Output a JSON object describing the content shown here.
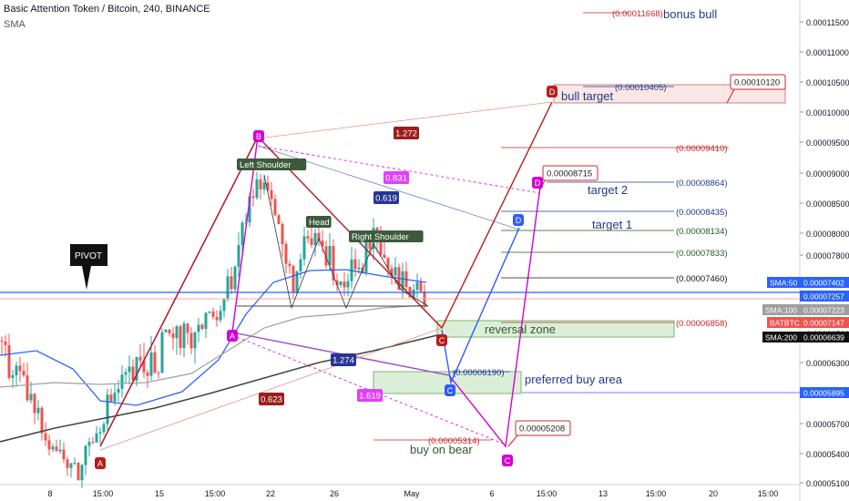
{
  "header": {
    "title": "Basic Attention Token / Bitcoin, 240, BINANCE",
    "indicator": "SMA"
  },
  "colors": {
    "up": "#26a69a",
    "down": "#ef5350",
    "sma50": "#2962ff",
    "sma100": "#a0a0a0",
    "sma200": "#454545",
    "pattern": "#d500d5",
    "bull": "#b71c1c",
    "bear": "#1e3a8a"
  },
  "chart_data": {
    "type": "candlestick",
    "symbol": "BATBTC",
    "timeframe": "240",
    "exchange": "BINANCE",
    "y_axis": {
      "ticks": [
        "0.00011500",
        "0.00011000",
        "0.00010500",
        "0.00010000",
        "0.00009500",
        "0.00009000",
        "0.00008500",
        "0.00008000",
        "0.00007800",
        "0.00007000",
        "0.00006500",
        "0.00006300",
        "0.00006000",
        "0.00005700",
        "0.00005400",
        "0.00005100"
      ],
      "tick_values": [
        0.000115,
        0.00011,
        0.000105,
        0.0001,
        9.5e-05,
        9e-05,
        8.5e-05,
        8e-05,
        7.8e-05,
        7e-05,
        6.5e-05,
        6.3e-05,
        6e-05,
        5.7e-05,
        5.4e-05,
        5.1e-05
      ]
    },
    "x_axis": {
      "ticks": [
        "8",
        "15:00",
        "15",
        "15:00",
        "22",
        "26",
        "May",
        "6",
        "15:00",
        "13",
        "15:00",
        "20",
        "15:00"
      ]
    },
    "price_labels": [
      {
        "name": "SMA:50",
        "value": "0.00007402"
      },
      {
        "name": "",
        "value": "0.00007257"
      },
      {
        "name": "SMA:100",
        "value": "0.00007223"
      },
      {
        "name": "BATBTC",
        "value": "0.00007147"
      },
      {
        "name": "SMA:200",
        "value": "0.00006639"
      },
      {
        "name": "",
        "value": "0.00005895"
      }
    ],
    "pattern_points": [
      {
        "label": "A",
        "price": 5.17e-05
      },
      {
        "label": "B",
        "price": 9.42e-05
      },
      {
        "label": "C",
        "price": 6.85e-05
      },
      {
        "label": "D",
        "price": 0.000104
      }
    ],
    "ratios": [
      "1.272",
      "0.831",
      "0.619",
      "1.274",
      "0.623",
      "1.619"
    ],
    "level_labels": [
      {
        "text": "(0.00011668)",
        "value": 0.00011668
      },
      {
        "text": "(0.00010405)",
        "value": 0.00010405
      },
      {
        "text": "(0.00009410)",
        "value": 9.41e-05
      },
      {
        "text": "(0.00008864)",
        "value": 8.864e-05
      },
      {
        "text": "(0.00008435)",
        "value": 8.435e-05
      },
      {
        "text": "(0.00008134)",
        "value": 8.134e-05
      },
      {
        "text": "(0.00007833)",
        "value": 7.833e-05
      },
      {
        "text": "(0.00007460)",
        "value": 7.46e-05
      },
      {
        "text": "(0.00006858)",
        "value": 6.858e-05
      },
      {
        "text": "(0.00006190)",
        "value": 6.19e-05
      },
      {
        "text": "(0.00005314)",
        "value": 5.314e-05
      }
    ],
    "callouts": [
      "0.00010120",
      "0.00008715",
      "0.00005208"
    ],
    "text_annotations": [
      "bonus bull",
      "bull target",
      "target 2",
      "target 1",
      "reversal zone",
      "preferred buy area",
      "buy on bear"
    ],
    "pattern_labels": [
      "Left Shoulder",
      "Head",
      "Right Shoulder"
    ],
    "pivot_label": "PIVOT",
    "series": [
      "SMA:50",
      "SMA:100",
      "SMA:200"
    ]
  }
}
